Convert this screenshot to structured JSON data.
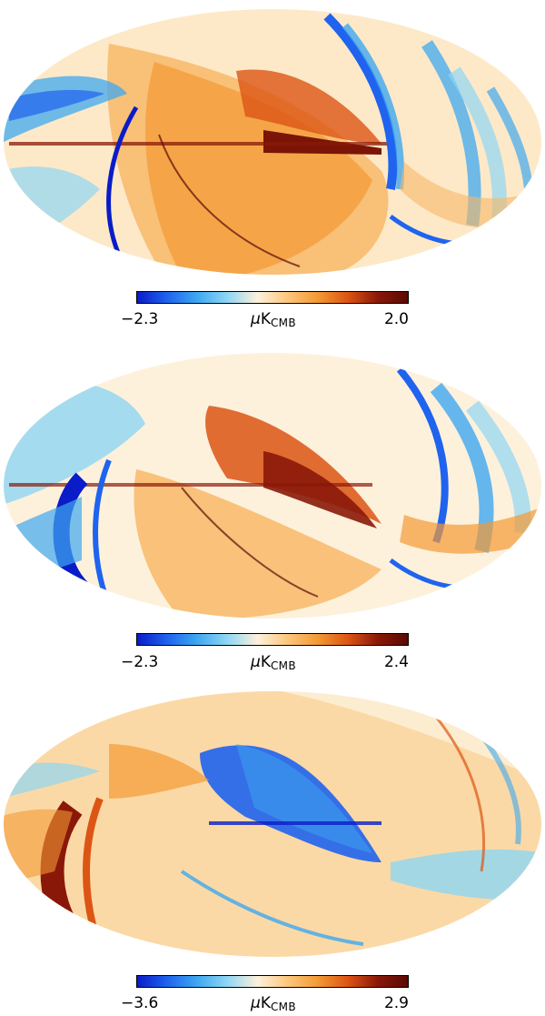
{
  "colormap": {
    "stops": [
      "#0a1cc8",
      "#1f63ee",
      "#3ea8f0",
      "#8fd6f4",
      "#fdf1dc",
      "#fbc77c",
      "#f39a35",
      "#dc5514",
      "#8a1808",
      "#5a0a04"
    ],
    "background": "#ffffff"
  },
  "maps": [
    {
      "colorbar_min": "−2.3",
      "colorbar_max": "2.0",
      "unit_prefix": "μ",
      "unit_main": "K",
      "unit_sub": "CMB",
      "dominant_features": [
        "orange-lobe-center",
        "blue-arcs-right",
        "dark-red-galactic-plane"
      ]
    },
    {
      "colorbar_min": "−2.3",
      "colorbar_max": "2.4",
      "unit_prefix": "μ",
      "unit_main": "K",
      "unit_sub": "CMB",
      "dominant_features": [
        "dark-red-lobe-center",
        "blue-arc-left",
        "blue-arcs-right"
      ]
    },
    {
      "colorbar_min": "−3.6",
      "colorbar_max": "2.9",
      "unit_prefix": "μ",
      "unit_main": "K",
      "unit_sub": "CMB",
      "dominant_features": [
        "blue-lobe-center",
        "dark-red-arc-left",
        "orange-background"
      ]
    }
  ]
}
